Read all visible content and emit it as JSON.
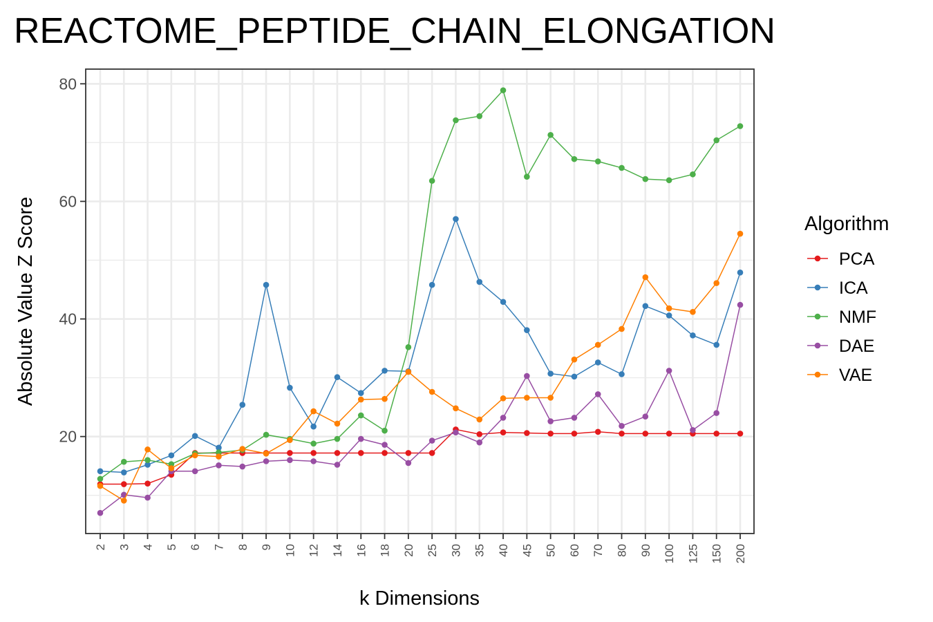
{
  "chart_data": {
    "type": "line",
    "title": "REACTOME_PEPTIDE_CHAIN_ELONGATION",
    "xlabel": "k Dimensions",
    "ylabel": "Absolute Value Z Score",
    "x": [
      "2",
      "3",
      "4",
      "5",
      "6",
      "7",
      "8",
      "9",
      "10",
      "12",
      "14",
      "16",
      "18",
      "20",
      "25",
      "30",
      "35",
      "40",
      "45",
      "50",
      "60",
      "70",
      "80",
      "90",
      "100",
      "125",
      "150",
      "200"
    ],
    "ylim": [
      3.5,
      82.5
    ],
    "yticks": [
      "20",
      "40",
      "60",
      "80"
    ],
    "grid": true,
    "legend_title": "Algorithm",
    "legend_position": "right",
    "series": [
      {
        "name": "PCA",
        "color": "#e41a1c",
        "values": [
          11.9,
          11.9,
          12.0,
          13.5,
          17.2,
          17.2,
          17.2,
          17.2,
          17.2,
          17.2,
          17.2,
          17.2,
          17.2,
          17.2,
          17.2,
          21.2,
          20.4,
          20.7,
          20.6,
          20.5,
          20.5,
          20.8,
          20.5,
          20.5,
          20.5,
          20.5,
          20.5,
          20.5
        ]
      },
      {
        "name": "ICA",
        "color": "#377eb8",
        "values": [
          14.1,
          13.9,
          15.2,
          16.8,
          20.1,
          18.1,
          25.4,
          45.8,
          28.3,
          21.7,
          30.1,
          27.4,
          31.2,
          31.1,
          45.8,
          57.0,
          46.3,
          42.9,
          38.1,
          30.7,
          30.2,
          32.6,
          30.6,
          42.2,
          40.6,
          37.2,
          35.6,
          47.9
        ]
      },
      {
        "name": "NMF",
        "color": "#4daf4a",
        "values": [
          12.8,
          15.7,
          16.0,
          15.3,
          17.1,
          17.3,
          17.7,
          20.3,
          19.6,
          18.8,
          19.6,
          23.6,
          21.0,
          35.2,
          63.5,
          73.8,
          74.5,
          78.9,
          64.2,
          71.3,
          67.2,
          66.8,
          65.7,
          63.8,
          63.6,
          64.6,
          70.4,
          72.8
        ]
      },
      {
        "name": "DAE",
        "color": "#984ea3",
        "values": [
          7.0,
          10.1,
          9.6,
          14.1,
          14.1,
          15.1,
          14.9,
          15.8,
          16.0,
          15.8,
          15.2,
          19.6,
          18.6,
          15.5,
          19.3,
          20.7,
          19.0,
          23.2,
          30.3,
          22.6,
          23.2,
          27.2,
          21.8,
          23.4,
          31.2,
          21.1,
          24.0,
          42.4
        ]
      },
      {
        "name": "VAE",
        "color": "#ff7f00",
        "values": [
          11.6,
          9.1,
          17.8,
          14.6,
          16.8,
          16.6,
          17.9,
          17.1,
          19.4,
          24.3,
          22.2,
          26.3,
          26.4,
          31.0,
          27.6,
          24.8,
          22.9,
          26.5,
          26.6,
          26.6,
          33.1,
          35.6,
          38.3,
          47.1,
          41.8,
          41.2,
          46.1,
          54.5
        ]
      }
    ]
  }
}
